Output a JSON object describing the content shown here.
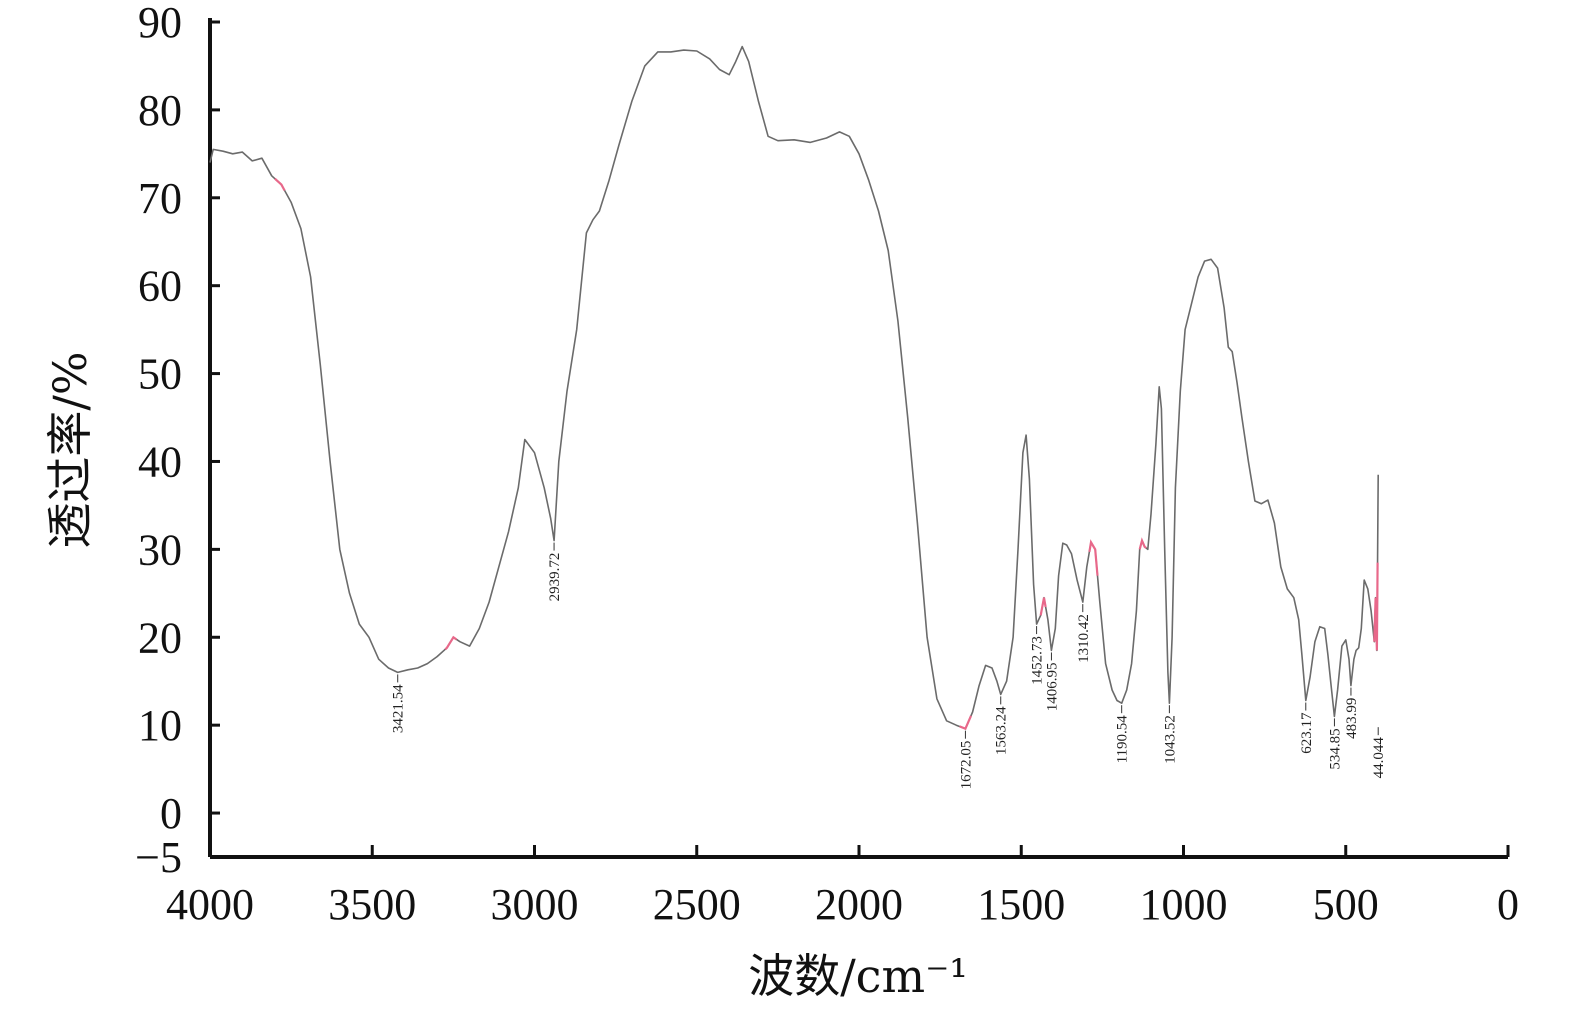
{
  "chart_data": {
    "type": "line",
    "title": "",
    "xlabel": "波数/cm⁻¹",
    "ylabel": "透过率/%",
    "xlim": [
      4000,
      0
    ],
    "ylim": [
      -5,
      90
    ],
    "x_reversed": true,
    "grid": false,
    "legend": "none",
    "x_ticks": [
      {
        "value": 4000,
        "label": "4000"
      },
      {
        "value": 3500,
        "label": "3500"
      },
      {
        "value": 3000,
        "label": "3000"
      },
      {
        "value": 2500,
        "label": "2500"
      },
      {
        "value": 2000,
        "label": "2000"
      },
      {
        "value": 1500,
        "label": "1500"
      },
      {
        "value": 1000,
        "label": "1000"
      },
      {
        "value": 500,
        "label": "500"
      },
      {
        "value": 0,
        "label": "0"
      }
    ],
    "y_ticks": [
      {
        "value": 90,
        "label": "90"
      },
      {
        "value": 80,
        "label": "80"
      },
      {
        "value": 70,
        "label": "70"
      },
      {
        "value": 60,
        "label": "60"
      },
      {
        "value": 50,
        "label": "50"
      },
      {
        "value": 40,
        "label": "40"
      },
      {
        "value": 30,
        "label": "30"
      },
      {
        "value": 20,
        "label": "20"
      },
      {
        "value": 10,
        "label": "10"
      },
      {
        "value": 0,
        "label": "0"
      },
      {
        "value": -5,
        "label": "−5"
      }
    ],
    "colors": {
      "line": "#6b6b6b",
      "highlight": "#e8688a",
      "axis": "#111111"
    },
    "series": [
      {
        "points": [
          [
            4000,
            74
          ],
          [
            3990,
            75.5
          ],
          [
            3960,
            75.3
          ],
          [
            3930,
            75
          ],
          [
            3900,
            75.2
          ],
          [
            3870,
            74.2
          ],
          [
            3840,
            74.5
          ],
          [
            3810,
            72.5
          ],
          [
            3780,
            71.5
          ],
          [
            3750,
            69.5
          ],
          [
            3720,
            66.5
          ],
          [
            3690,
            61
          ],
          [
            3660,
            51
          ],
          [
            3630,
            40
          ],
          [
            3600,
            30
          ],
          [
            3570,
            25
          ],
          [
            3540,
            21.5
          ],
          [
            3510,
            20
          ],
          [
            3480,
            17.5
          ],
          [
            3450,
            16.5
          ],
          [
            3421.54,
            16
          ],
          [
            3390,
            16.3
          ],
          [
            3360,
            16.5
          ],
          [
            3330,
            17
          ],
          [
            3300,
            17.8
          ],
          [
            3270,
            18.8
          ],
          [
            3250,
            20
          ],
          [
            3230,
            19.5
          ],
          [
            3200,
            19
          ],
          [
            3170,
            21
          ],
          [
            3140,
            24
          ],
          [
            3110,
            28
          ],
          [
            3080,
            32
          ],
          [
            3050,
            37
          ],
          [
            3030,
            42.5
          ],
          [
            3000,
            41
          ],
          [
            2970,
            37
          ],
          [
            2950,
            33.5
          ],
          [
            2939.72,
            31
          ],
          [
            2925,
            40
          ],
          [
            2900,
            48
          ],
          [
            2870,
            55
          ],
          [
            2840,
            66
          ],
          [
            2820,
            67.5
          ],
          [
            2800,
            68.5
          ],
          [
            2770,
            72
          ],
          [
            2740,
            76
          ],
          [
            2700,
            81
          ],
          [
            2660,
            85
          ],
          [
            2620,
            86.6
          ],
          [
            2580,
            86.6
          ],
          [
            2540,
            86.8
          ],
          [
            2500,
            86.7
          ],
          [
            2460,
            85.8
          ],
          [
            2430,
            84.6
          ],
          [
            2400,
            84
          ],
          [
            2380,
            85.5
          ],
          [
            2360,
            87.2
          ],
          [
            2340,
            85.5
          ],
          [
            2310,
            81
          ],
          [
            2280,
            77
          ],
          [
            2250,
            76.5
          ],
          [
            2200,
            76.6
          ],
          [
            2150,
            76.3
          ],
          [
            2100,
            76.8
          ],
          [
            2060,
            77.5
          ],
          [
            2030,
            77
          ],
          [
            2000,
            75
          ],
          [
            1970,
            72
          ],
          [
            1940,
            68.5
          ],
          [
            1910,
            64
          ],
          [
            1880,
            56
          ],
          [
            1850,
            45
          ],
          [
            1820,
            33
          ],
          [
            1790,
            20
          ],
          [
            1760,
            13
          ],
          [
            1730,
            10.5
          ],
          [
            1700,
            10
          ],
          [
            1672.05,
            9.6
          ],
          [
            1650,
            11.5
          ],
          [
            1630,
            14.5
          ],
          [
            1610,
            16.8
          ],
          [
            1590,
            16.5
          ],
          [
            1575,
            15
          ],
          [
            1563.24,
            13.5
          ],
          [
            1545,
            15
          ],
          [
            1525,
            20
          ],
          [
            1510,
            30
          ],
          [
            1495,
            41
          ],
          [
            1485,
            43
          ],
          [
            1475,
            38
          ],
          [
            1462,
            26
          ],
          [
            1452.73,
            21.5
          ],
          [
            1440,
            22.5
          ],
          [
            1430,
            24.5
          ],
          [
            1418,
            22
          ],
          [
            1406.95,
            18.5
          ],
          [
            1395,
            21
          ],
          [
            1385,
            27
          ],
          [
            1372,
            30.7
          ],
          [
            1360,
            30.5
          ],
          [
            1345,
            29.5
          ],
          [
            1328,
            26.5
          ],
          [
            1310.42,
            24
          ],
          [
            1298,
            28
          ],
          [
            1285,
            30.8
          ],
          [
            1272,
            30
          ],
          [
            1258,
            24
          ],
          [
            1240,
            17
          ],
          [
            1220,
            14
          ],
          [
            1205,
            12.8
          ],
          [
            1190.54,
            12.5
          ],
          [
            1175,
            14
          ],
          [
            1160,
            17
          ],
          [
            1145,
            23
          ],
          [
            1135,
            30
          ],
          [
            1128,
            31
          ],
          [
            1120,
            30.3
          ],
          [
            1110,
            30
          ],
          [
            1100,
            34
          ],
          [
            1085,
            42
          ],
          [
            1075,
            48.5
          ],
          [
            1068,
            46
          ],
          [
            1058,
            30
          ],
          [
            1048,
            16
          ],
          [
            1043.52,
            12.5
          ],
          [
            1035,
            20
          ],
          [
            1025,
            37
          ],
          [
            1010,
            48
          ],
          [
            995,
            55
          ],
          [
            975,
            58
          ],
          [
            955,
            61
          ],
          [
            935,
            62.8
          ],
          [
            915,
            63
          ],
          [
            895,
            62
          ],
          [
            875,
            57.5
          ],
          [
            862,
            53
          ],
          [
            850,
            52.5
          ],
          [
            835,
            49
          ],
          [
            820,
            45
          ],
          [
            800,
            40
          ],
          [
            780,
            35.5
          ],
          [
            760,
            35.2
          ],
          [
            740,
            35.6
          ],
          [
            720,
            33
          ],
          [
            700,
            28
          ],
          [
            680,
            25.5
          ],
          [
            660,
            24.5
          ],
          [
            645,
            22
          ],
          [
            635,
            18
          ],
          [
            623.17,
            12.8
          ],
          [
            610,
            15.5
          ],
          [
            595,
            19.5
          ],
          [
            580,
            21.2
          ],
          [
            565,
            21
          ],
          [
            555,
            18
          ],
          [
            545,
            14.5
          ],
          [
            534.85,
            11
          ],
          [
            525,
            14
          ],
          [
            512,
            19
          ],
          [
            500,
            19.7
          ],
          [
            490,
            17.5
          ],
          [
            483.99,
            14.5
          ],
          [
            475,
            17.5
          ],
          [
            468,
            18.5
          ],
          [
            460,
            18.8
          ],
          [
            452,
            21
          ],
          [
            443,
            26.5
          ],
          [
            432,
            25.5
          ],
          [
            422,
            23
          ],
          [
            412,
            19.5
          ],
          [
            408,
            24.5
          ],
          [
            404,
            18.5
          ],
          [
            400,
            38.5
          ]
        ]
      }
    ],
    "highlight_ranges": [
      [
        3800,
        3770
      ],
      [
        3275,
        3240
      ],
      [
        1690,
        1655
      ],
      [
        1440,
        1425
      ],
      [
        1290,
        1265
      ],
      [
        1135,
        1115
      ],
      [
        412,
        402
      ]
    ],
    "peak_labels": [
      {
        "x": 3421.54,
        "y": 16,
        "text": "3421.54"
      },
      {
        "x": 2939.72,
        "y": 31,
        "text": "2939.72"
      },
      {
        "x": 1672.05,
        "y": 9.6,
        "text": "1672.05"
      },
      {
        "x": 1563.24,
        "y": 13.5,
        "text": "1563.24"
      },
      {
        "x": 1452.73,
        "y": 21.5,
        "text": "1452.73"
      },
      {
        "x": 1406.95,
        "y": 18.5,
        "text": "1406.95"
      },
      {
        "x": 1310.42,
        "y": 24,
        "text": "1310.42"
      },
      {
        "x": 1190.54,
        "y": 12.5,
        "text": "1190.54"
      },
      {
        "x": 1043.52,
        "y": 12.5,
        "text": "1043.52"
      },
      {
        "x": 623.17,
        "y": 12.8,
        "text": "623.17"
      },
      {
        "x": 534.85,
        "y": 11,
        "text": "534.85"
      },
      {
        "x": 483.99,
        "y": 14.5,
        "text": "483.99"
      },
      {
        "x": 400,
        "y": 10,
        "text": "44.044"
      }
    ]
  }
}
